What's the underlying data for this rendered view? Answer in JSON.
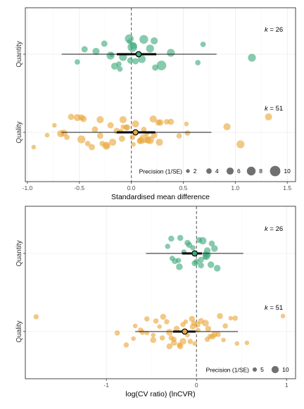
{
  "chart_data": [
    {
      "type": "scatter",
      "xlabel": "Standardised mean difference",
      "ylabel": "",
      "xlim": [
        -1.02,
        1.58
      ],
      "x_ticks": [
        "-1.0",
        "-0.5",
        "0.0",
        "0.5",
        "1.0",
        "1.5"
      ],
      "x_tick_values": [
        -1.0,
        -0.5,
        0.0,
        0.5,
        1.0,
        1.5
      ],
      "reference_line": 0,
      "grid": true,
      "legend_position": "bottom-right",
      "groups": [
        {
          "name": "Quantity",
          "color": "#3fa97c",
          "k_label": "k",
          "k_value": "= 26",
          "estimate": 0.07,
          "ci": [
            -0.14,
            0.24
          ],
          "pi": [
            -0.67,
            0.82
          ],
          "points": [
            {
              "x": -0.02,
              "p": 3
            },
            {
              "x": -0.01,
              "p": 5
            },
            {
              "x": -0.34,
              "p": 6
            },
            {
              "x": -0.12,
              "p": 4
            },
            {
              "x": 0.02,
              "p": 6
            },
            {
              "x": -0.08,
              "p": 7
            },
            {
              "x": 0.12,
              "p": 8
            },
            {
              "x": 0.23,
              "p": 5
            },
            {
              "x": -0.45,
              "p": 5
            },
            {
              "x": -0.52,
              "p": 4
            },
            {
              "x": -0.26,
              "p": 5
            },
            {
              "x": -0.19,
              "p": 3
            },
            {
              "x": -0.11,
              "p": 4
            },
            {
              "x": 0.01,
              "p": 9
            },
            {
              "x": 0.1,
              "p": 7
            },
            {
              "x": 0.22,
              "p": 6
            },
            {
              "x": 0.29,
              "p": 9
            },
            {
              "x": 0.38,
              "p": 7
            },
            {
              "x": 0.64,
              "p": 4
            },
            {
              "x": 0.69,
              "p": 4
            },
            {
              "x": 1.16,
              "p": 7
            },
            {
              "x": 0.18,
              "p": 7
            },
            {
              "x": -0.16,
              "p": 6
            },
            {
              "x": -0.02,
              "p": 8
            },
            {
              "x": -0.2,
              "p": 7
            },
            {
              "x": 0.04,
              "p": 5
            }
          ]
        },
        {
          "name": "Quality",
          "color": "#e8a73a",
          "k_label": "k",
          "k_value": "= 51",
          "estimate": 0.04,
          "ci": [
            -0.14,
            0.23
          ],
          "pi": [
            -0.67,
            0.77
          ],
          "points": [
            {
              "x": -0.08,
              "p": 6
            },
            {
              "x": 0.12,
              "p": 8
            },
            {
              "x": -0.35,
              "p": 5
            },
            {
              "x": -0.18,
              "p": 6
            },
            {
              "x": 0.04,
              "p": 6
            },
            {
              "x": 0.22,
              "p": 5
            },
            {
              "x": -0.52,
              "p": 6
            },
            {
              "x": -0.24,
              "p": 7
            },
            {
              "x": -0.04,
              "p": 5
            },
            {
              "x": 0.18,
              "p": 7
            },
            {
              "x": 0.38,
              "p": 5
            },
            {
              "x": 0.54,
              "p": 4
            },
            {
              "x": -0.94,
              "p": 3
            },
            {
              "x": -0.74,
              "p": 3
            },
            {
              "x": -0.62,
              "p": 4
            },
            {
              "x": -0.46,
              "p": 5
            },
            {
              "x": -0.28,
              "p": 4
            },
            {
              "x": -0.14,
              "p": 5
            },
            {
              "x": 0.09,
              "p": 6
            },
            {
              "x": 0.26,
              "p": 5
            },
            {
              "x": 0.46,
              "p": 4
            },
            {
              "x": 0.92,
              "p": 6
            },
            {
              "x": 1.05,
              "p": 7
            },
            {
              "x": 1.32,
              "p": 6
            },
            {
              "x": -0.68,
              "p": 6
            },
            {
              "x": -0.48,
              "p": 7
            },
            {
              "x": -0.3,
              "p": 6
            },
            {
              "x": -0.09,
              "p": 5
            },
            {
              "x": 0.12,
              "p": 4
            },
            {
              "x": 0.27,
              "p": 6
            },
            {
              "x": 0.53,
              "p": 3
            },
            {
              "x": -0.81,
              "p": 3
            },
            {
              "x": -0.48,
              "p": 5
            },
            {
              "x": -0.24,
              "p": 4
            },
            {
              "x": -0.05,
              "p": 4
            },
            {
              "x": 0.16,
              "p": 6
            },
            {
              "x": 0.34,
              "p": 4
            },
            {
              "x": -0.65,
              "p": 6
            },
            {
              "x": -0.38,
              "p": 5
            },
            {
              "x": -0.2,
              "p": 5
            },
            {
              "x": 0.01,
              "p": 4
            },
            {
              "x": 0.21,
              "p": 6
            },
            {
              "x": -0.42,
              "p": 4
            },
            {
              "x": -0.1,
              "p": 3
            },
            {
              "x": 0.08,
              "p": 4
            },
            {
              "x": 0.28,
              "p": 5
            },
            {
              "x": -0.3,
              "p": 5
            },
            {
              "x": -0.08,
              "p": 3
            },
            {
              "x": 0.02,
              "p": 3
            },
            {
              "x": -0.58,
              "p": 5
            },
            {
              "x": 0.15,
              "p": 3
            }
          ]
        }
      ],
      "legend": {
        "title": "Precision (1/SE)",
        "values": [
          "2",
          "4",
          "6",
          "8",
          "10"
        ]
      }
    },
    {
      "type": "scatter",
      "xlabel": "log(CV ratio) (lnCVR)",
      "ylabel": "",
      "xlim": [
        -1.9,
        1.1
      ],
      "x_ticks": [
        "-1",
        "0",
        "1"
      ],
      "x_tick_values": [
        -1,
        0,
        1
      ],
      "reference_line": 0,
      "grid": true,
      "legend_position": "bottom-right",
      "groups": [
        {
          "name": "Quantity",
          "color": "#3fa97c",
          "k_label": "k",
          "k_value": "= 26",
          "estimate": -0.02,
          "ci": [
            -0.16,
            0.06
          ],
          "pi": [
            -0.56,
            0.52
          ],
          "points": [
            {
              "x": 0.07,
              "p": 8
            },
            {
              "x": 0.05,
              "p": 6
            },
            {
              "x": 0.12,
              "p": 7
            },
            {
              "x": -0.02,
              "p": 6
            },
            {
              "x": -0.08,
              "p": 6
            },
            {
              "x": 0.11,
              "p": 8
            },
            {
              "x": -0.28,
              "p": 6
            },
            {
              "x": -0.19,
              "p": 7
            },
            {
              "x": 0.2,
              "p": 7
            },
            {
              "x": -0.24,
              "p": 6
            },
            {
              "x": -0.1,
              "p": 6
            },
            {
              "x": 0.1,
              "p": 6
            },
            {
              "x": 0.23,
              "p": 7
            },
            {
              "x": -0.32,
              "p": 5
            },
            {
              "x": -0.27,
              "p": 5
            },
            {
              "x": 0.03,
              "p": 6
            },
            {
              "x": 0.16,
              "p": 7
            },
            {
              "x": -0.14,
              "p": 5
            },
            {
              "x": 0.0,
              "p": 6
            },
            {
              "x": 0.17,
              "p": 6
            },
            {
              "x": 0.1,
              "p": 5
            },
            {
              "x": -0.04,
              "p": 5
            },
            {
              "x": 0.05,
              "p": 6
            },
            {
              "x": -0.18,
              "p": 6
            },
            {
              "x": 0.13,
              "p": 5
            },
            {
              "x": -0.2,
              "p": 5
            }
          ]
        },
        {
          "name": "Quality",
          "color": "#e8a73a",
          "k_label": "k",
          "k_value": "= 51",
          "estimate": -0.13,
          "ci": [
            -0.26,
            -0.01
          ],
          "pi": [
            -0.68,
            0.46
          ],
          "points": [
            {
              "x": -0.05,
              "p": 6
            },
            {
              "x": -0.28,
              "p": 5
            },
            {
              "x": 0.13,
              "p": 6
            },
            {
              "x": -0.15,
              "p": 7
            },
            {
              "x": -0.03,
              "p": 5
            },
            {
              "x": 0.2,
              "p": 6
            },
            {
              "x": -0.37,
              "p": 6
            },
            {
              "x": -0.19,
              "p": 5
            },
            {
              "x": -0.04,
              "p": 6
            },
            {
              "x": 0.12,
              "p": 5
            },
            {
              "x": -0.45,
              "p": 5
            },
            {
              "x": -0.3,
              "p": 7
            },
            {
              "x": -0.18,
              "p": 6
            },
            {
              "x": 0.01,
              "p": 6
            },
            {
              "x": 0.18,
              "p": 6
            },
            {
              "x": 0.43,
              "p": 5
            },
            {
              "x": 0.56,
              "p": 4
            },
            {
              "x": -0.62,
              "p": 5
            },
            {
              "x": -0.48,
              "p": 6
            },
            {
              "x": -0.33,
              "p": 5
            },
            {
              "x": -0.1,
              "p": 4
            },
            {
              "x": 0.32,
              "p": 5
            },
            {
              "x": 0.45,
              "p": 4
            },
            {
              "x": 0.96,
              "p": 4
            },
            {
              "x": -0.88,
              "p": 5
            },
            {
              "x": -0.7,
              "p": 4
            },
            {
              "x": -0.55,
              "p": 5
            },
            {
              "x": -0.38,
              "p": 5
            },
            {
              "x": -0.22,
              "p": 6
            },
            {
              "x": -0.07,
              "p": 5
            },
            {
              "x": 0.1,
              "p": 7
            },
            {
              "x": 0.24,
              "p": 5
            },
            {
              "x": -1.78,
              "p": 5
            },
            {
              "x": -0.78,
              "p": 5
            },
            {
              "x": -0.41,
              "p": 4
            },
            {
              "x": -0.25,
              "p": 5
            },
            {
              "x": 0.05,
              "p": 6
            },
            {
              "x": -0.6,
              "p": 5
            },
            {
              "x": -0.3,
              "p": 6
            },
            {
              "x": -0.15,
              "p": 5
            },
            {
              "x": 0.15,
              "p": 5
            },
            {
              "x": 0.38,
              "p": 4
            },
            {
              "x": -0.25,
              "p": 6
            },
            {
              "x": 0.02,
              "p": 4
            },
            {
              "x": 0.3,
              "p": 4
            },
            {
              "x": -0.12,
              "p": 4
            },
            {
              "x": -0.48,
              "p": 4
            },
            {
              "x": -0.68,
              "p": 4
            },
            {
              "x": -0.02,
              "p": 4
            },
            {
              "x": 0.26,
              "p": 6
            },
            {
              "x": -0.55,
              "p": 4
            }
          ]
        }
      ],
      "legend": {
        "title": "Precision (1/SE)",
        "values": [
          "5",
          "10"
        ]
      }
    }
  ]
}
